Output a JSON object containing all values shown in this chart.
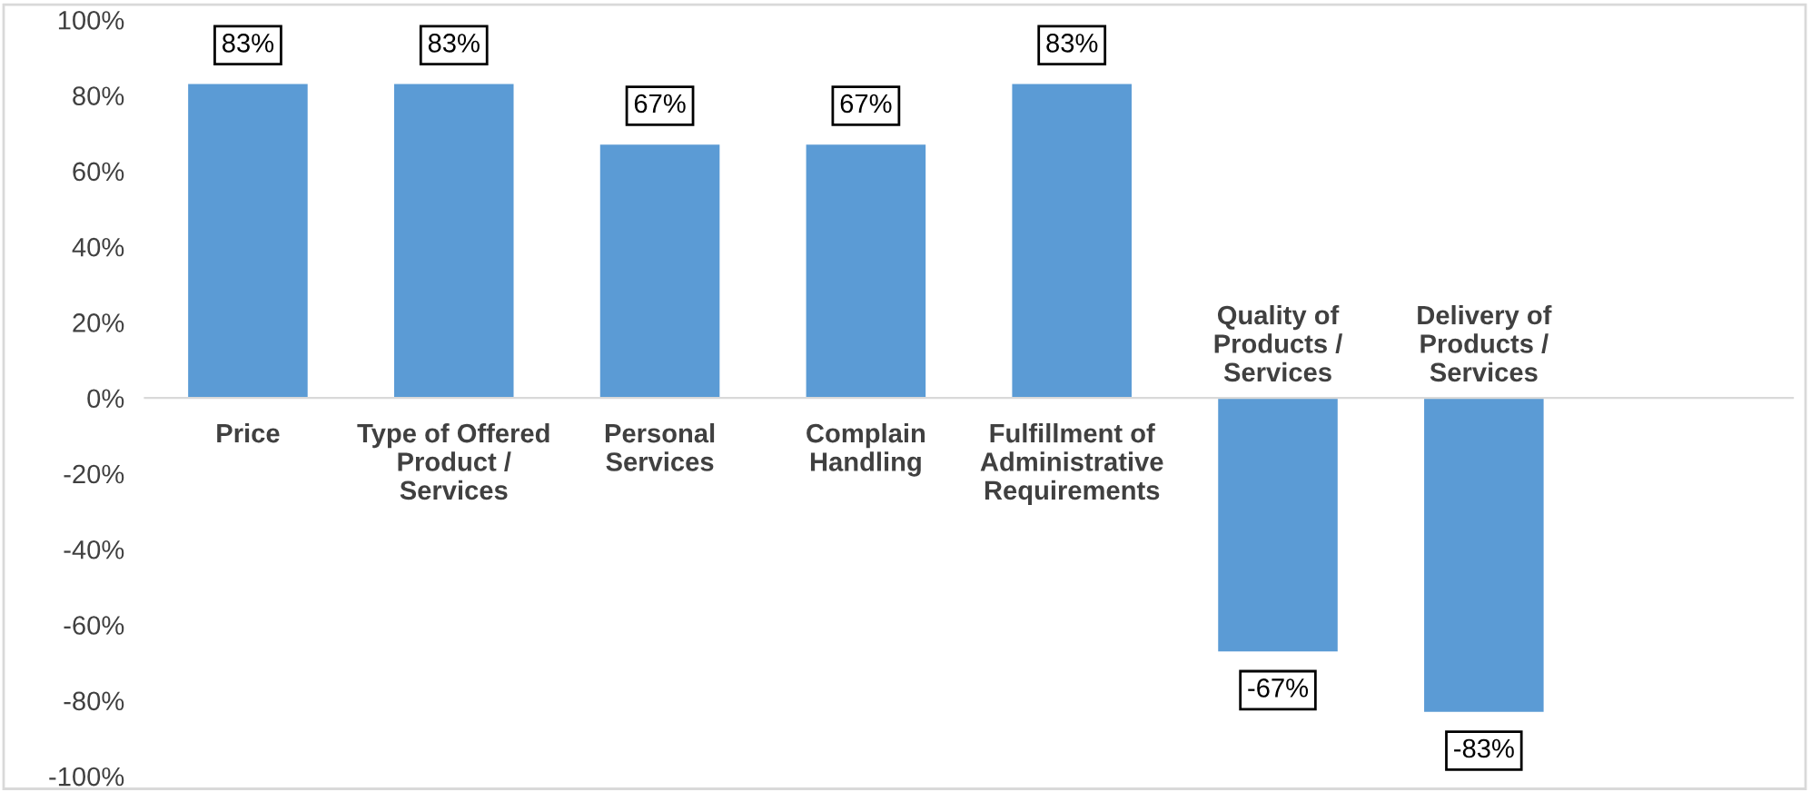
{
  "chart_data": {
    "type": "bar",
    "categories": [
      "Price",
      "Type of Offered\nProduct /\nServices",
      "Personal\nServices",
      "Complain\nHandling",
      "Fulfillment of\nAdministrative\nRequirements",
      "Quality of\nProducts /\nServices",
      "Delivery of\nProducts /\nServices",
      null
    ],
    "values": [
      83,
      83,
      67,
      67,
      83,
      -67,
      -83,
      null
    ],
    "value_labels": [
      "83%",
      "83%",
      "67%",
      "67%",
      "83%",
      "-67%",
      "-83%",
      null
    ],
    "color": "#5b9bd5",
    "ylim": [
      -100,
      100
    ],
    "yticks": [
      {
        "value": -100,
        "label": "-100%"
      },
      {
        "value": -80,
        "label": "-80%"
      },
      {
        "value": -60,
        "label": "-60%"
      },
      {
        "value": -40,
        "label": "-40%"
      },
      {
        "value": -20,
        "label": "-20%"
      },
      {
        "value": 0,
        "label": "0%"
      },
      {
        "value": 20,
        "label": "20%"
      },
      {
        "value": 40,
        "label": "40%"
      },
      {
        "value": 60,
        "label": "60%"
      },
      {
        "value": 80,
        "label": "80%"
      },
      {
        "value": 100,
        "label": "100%"
      }
    ],
    "grid": false,
    "legend": false
  }
}
